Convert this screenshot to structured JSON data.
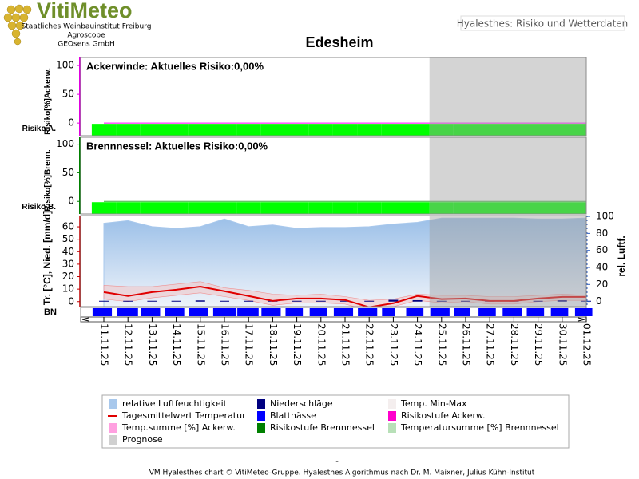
{
  "header": {
    "logo": "VitiMeteo",
    "org_lines": [
      "Staatliches Weinbauinstitut Freiburg",
      "Agroscope",
      "GEOsens GmbH"
    ],
    "tab": "Hyalesthes: Risiko und Wetterdaten"
  },
  "title": "Edesheim",
  "chart_data": [
    {
      "type": "risk",
      "annotation": "Ackerwinde: Aktuelles Risiko:0,00%",
      "y_label": "Risiko[%]Ackerw.",
      "row_label": "Risiko A.",
      "ylim": [
        -22,
        114
      ],
      "yticks": [
        0,
        50,
        100
      ],
      "axis_color": "#e000e0",
      "temp_sum": {
        "color": "#ff00ff",
        "values": [
          0,
          0,
          0,
          0,
          0,
          0,
          0,
          0,
          0,
          0,
          0,
          0,
          0,
          0,
          0,
          0,
          0,
          0,
          0,
          0,
          0
        ]
      },
      "risk_level": {
        "color": "#00ff00",
        "values": [
          0,
          0,
          0,
          0,
          0,
          0,
          0,
          0,
          0,
          0,
          0,
          0,
          0,
          0,
          0,
          0,
          0,
          0,
          0,
          0,
          0
        ]
      }
    },
    {
      "type": "risk",
      "annotation": "Brennnessel: Aktuelles Risiko:0,00%",
      "y_label": "Risiko[%]Brenn.",
      "row_label": "Risiko B.",
      "ylim": [
        -22,
        112
      ],
      "yticks": [
        0,
        50,
        100
      ],
      "axis_color": "#008000",
      "temp_sum": {
        "color": "#30b030",
        "values": [
          0,
          0,
          0,
          0,
          0,
          0,
          0,
          0,
          0,
          0,
          0,
          0,
          0,
          0,
          0,
          0,
          0,
          0,
          0,
          0,
          0
        ]
      },
      "risk_level": {
        "color": "#00ff00",
        "values": [
          0,
          0,
          0,
          0,
          0,
          0,
          0,
          0,
          0,
          0,
          0,
          0,
          0,
          0,
          0,
          0,
          0,
          0,
          0,
          0,
          0
        ]
      }
    },
    {
      "type": "weather",
      "y_label": "Tr. [°C], Nied. [mm/d]",
      "y2_label": "rel. Luftf.",
      "strip_label": "BN",
      "categories": [
        "11.11.25",
        "12.11.25",
        "13.11.25",
        "14.11.25",
        "15.11.25",
        "16.11.25",
        "17.11.25",
        "18.11.25",
        "19.11.25",
        "20.11.25",
        "21.11.25",
        "22.11.25",
        "23.11.25",
        "24.11.25",
        "25.11.25",
        "26.11.25",
        "27.11.25",
        "28.11.25",
        "29.11.25",
        "30.11.25",
        "01.12.25"
      ],
      "ylim": [
        -4,
        69
      ],
      "yticks": [
        0,
        10,
        20,
        30,
        40,
        50,
        60
      ],
      "y2lim": [
        -6,
        101
      ],
      "y2ticks": [
        0,
        20,
        40,
        60,
        80,
        100
      ],
      "prognose": {
        "color": "#a0a0a0",
        "from": "25.11.25"
      },
      "humidity": {
        "color": "#a8c8ec",
        "axis": "y2",
        "values": [
          92,
          95,
          88,
          86,
          88,
          97,
          88,
          90,
          86,
          87,
          87,
          88,
          91,
          93,
          98,
          98,
          98,
          98,
          97,
          97,
          98
        ]
      },
      "temp_range": {
        "color": "#f4c4c4",
        "values": [
          13,
          12,
          12,
          14,
          16,
          11,
          9,
          6,
          5,
          6,
          4,
          1,
          2,
          6,
          5,
          5,
          4,
          4,
          5,
          6,
          5
        ],
        "low": [
          2,
          0,
          3,
          5,
          7,
          4,
          1,
          -3,
          -1,
          -1,
          -2,
          -7,
          -4,
          1,
          -1,
          0,
          -2,
          -2,
          0,
          1,
          1
        ]
      },
      "temperature": {
        "color": "#e00000",
        "values": [
          7.6,
          4.5,
          7.6,
          9.5,
          12,
          8.3,
          4.5,
          0.6,
          2.5,
          2.5,
          1.3,
          -4.5,
          -1.3,
          4.5,
          2,
          2.5,
          0.6,
          0.6,
          2.5,
          3.8,
          3.8
        ]
      },
      "precipitation": {
        "color": "#000080",
        "values": [
          0,
          0,
          0,
          0,
          0.3,
          0,
          0,
          0,
          0,
          0,
          0,
          0,
          0.8,
          0.5,
          0,
          0,
          0,
          0,
          0,
          0.4,
          0
        ]
      },
      "leaf_wetness": {
        "color": "#0000ff",
        "values": [
          20,
          22,
          20,
          20,
          20,
          24,
          22,
          20,
          18,
          18,
          20,
          20,
          14,
          18,
          20,
          16,
          18,
          20,
          18,
          18,
          18
        ]
      }
    }
  ],
  "legend": [
    {
      "name": "relative Luftfeuchtigkeit",
      "color": "#a8c8ec"
    },
    {
      "name": "Niederschläge",
      "color": "#000080"
    },
    {
      "name": "Temp. Min-Max",
      "color": "#f4eeee"
    },
    {
      "name": "Tagesmittelwert Temperatur",
      "color": "#e00000"
    },
    {
      "name": "Blattnässe",
      "color": "#0000ff"
    },
    {
      "name": "Risikostufe Ackerw.",
      "color": "#ff00cc"
    },
    {
      "name": "Temp.summe [%] Ackerw.",
      "color": "#ffa0e0"
    },
    {
      "name": "Risikostufe Brennnessel",
      "color": "#008000"
    },
    {
      "name": "Temperatursumme [%] Brennnessel",
      "color": "#b8e0b8"
    },
    {
      "name": "Prognose",
      "color": "#d0d0d0"
    }
  ],
  "footer_dash": "-",
  "footer": "VM Hyalesthes chart © VitiMeteo-Gruppe. Hyalesthes Algorithmus nach Dr. M. Maixner, Julius Kühn-Institut"
}
